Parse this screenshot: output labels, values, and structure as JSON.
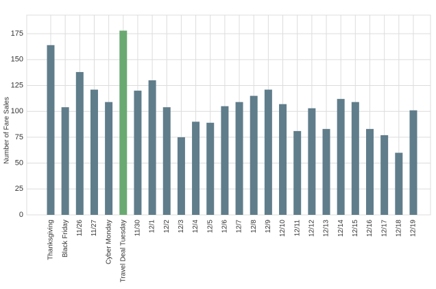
{
  "chart_data": {
    "type": "bar",
    "ylabel": "Number of Fare Sales",
    "categories": [
      "Thanksgiving",
      "Black Friday",
      "11/26",
      "11/27",
      "Cyber Monday",
      "Travel Deal Tuesday",
      "11/30",
      "12/1",
      "12/2",
      "12/3",
      "12/4",
      "12/5",
      "12/6",
      "12/7",
      "12/8",
      "12/9",
      "12/10",
      "12/11",
      "12/12",
      "12/13",
      "12/14",
      "12/15",
      "12/16",
      "12/17",
      "12/18",
      "12/19"
    ],
    "values": [
      164,
      104,
      138,
      121,
      109,
      178,
      120,
      130,
      104,
      75,
      90,
      89,
      105,
      109,
      115,
      121,
      107,
      81,
      103,
      83,
      112,
      109,
      83,
      77,
      60,
      101
    ],
    "colors": [
      "#607d8b",
      "#607d8b",
      "#607d8b",
      "#607d8b",
      "#607d8b",
      "#6aaa72",
      "#607d8b",
      "#607d8b",
      "#607d8b",
      "#607d8b",
      "#607d8b",
      "#607d8b",
      "#607d8b",
      "#607d8b",
      "#607d8b",
      "#607d8b",
      "#607d8b",
      "#607d8b",
      "#607d8b",
      "#607d8b",
      "#607d8b",
      "#607d8b",
      "#607d8b",
      "#607d8b",
      "#607d8b",
      "#607d8b"
    ],
    "ylim": [
      0,
      193
    ],
    "yticks": [
      0,
      25,
      50,
      75,
      100,
      125,
      150,
      175
    ],
    "grid": true
  }
}
